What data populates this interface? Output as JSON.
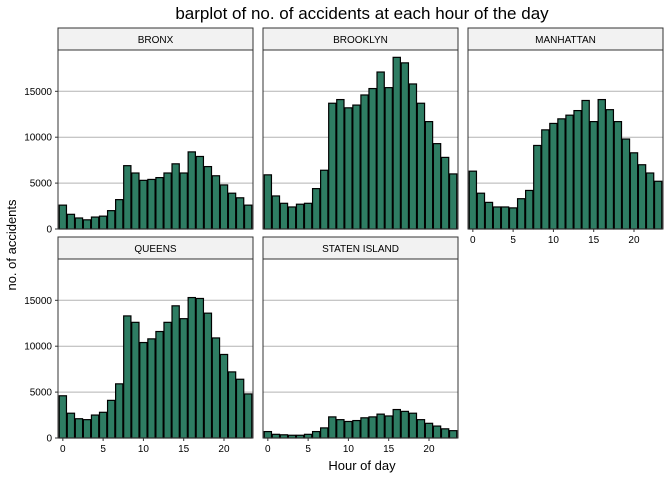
{
  "chart_data": {
    "type": "bar",
    "title": "barplot of no. of accidents at each hour of the day",
    "xlabel": "Hour of day",
    "ylabel": "no. of accidents",
    "bar_color": "#2e7d63",
    "x": [
      0,
      1,
      2,
      3,
      4,
      5,
      6,
      7,
      8,
      9,
      10,
      11,
      12,
      13,
      14,
      15,
      16,
      17,
      18,
      19,
      20,
      21,
      22,
      23
    ],
    "x_ticks": [
      0,
      5,
      10,
      15,
      20
    ],
    "y_ticks": [
      0,
      5000,
      10000,
      15000
    ],
    "ylim": [
      0,
      19500
    ],
    "grid": true,
    "panels": [
      {
        "name": "BRONX",
        "values": [
          2600,
          1600,
          1200,
          1000,
          1300,
          1400,
          2000,
          3200,
          6900,
          6100,
          5300,
          5400,
          5600,
          6100,
          7100,
          6100,
          8400,
          7900,
          6800,
          5800,
          4800,
          3900,
          3400,
          2600
        ]
      },
      {
        "name": "BROOKLYN",
        "values": [
          5900,
          3600,
          2800,
          2400,
          2700,
          2800,
          4400,
          6400,
          13700,
          14100,
          13200,
          13500,
          14600,
          15300,
          17100,
          15400,
          18700,
          18100,
          15800,
          13700,
          11700,
          9300,
          7800,
          6000
        ]
      },
      {
        "name": "MANHATTAN",
        "values": [
          6300,
          3900,
          2900,
          2400,
          2400,
          2300,
          3300,
          4200,
          9100,
          10800,
          11500,
          12000,
          12400,
          12900,
          14000,
          11700,
          14100,
          13000,
          11700,
          9800,
          8300,
          7000,
          6100,
          5200
        ]
      },
      {
        "name": "QUEENS",
        "values": [
          4600,
          2700,
          2100,
          2000,
          2500,
          2800,
          4100,
          5900,
          13300,
          12600,
          10400,
          10800,
          11600,
          12600,
          14400,
          13000,
          15300,
          15200,
          13600,
          10900,
          9100,
          7200,
          6400,
          4800
        ]
      },
      {
        "name": "STATEN ISLAND",
        "values": [
          700,
          400,
          350,
          300,
          300,
          400,
          700,
          1100,
          2300,
          2000,
          1800,
          1900,
          2200,
          2300,
          2600,
          2400,
          3100,
          2900,
          2700,
          2000,
          1600,
          1300,
          1000,
          800
        ]
      }
    ]
  }
}
